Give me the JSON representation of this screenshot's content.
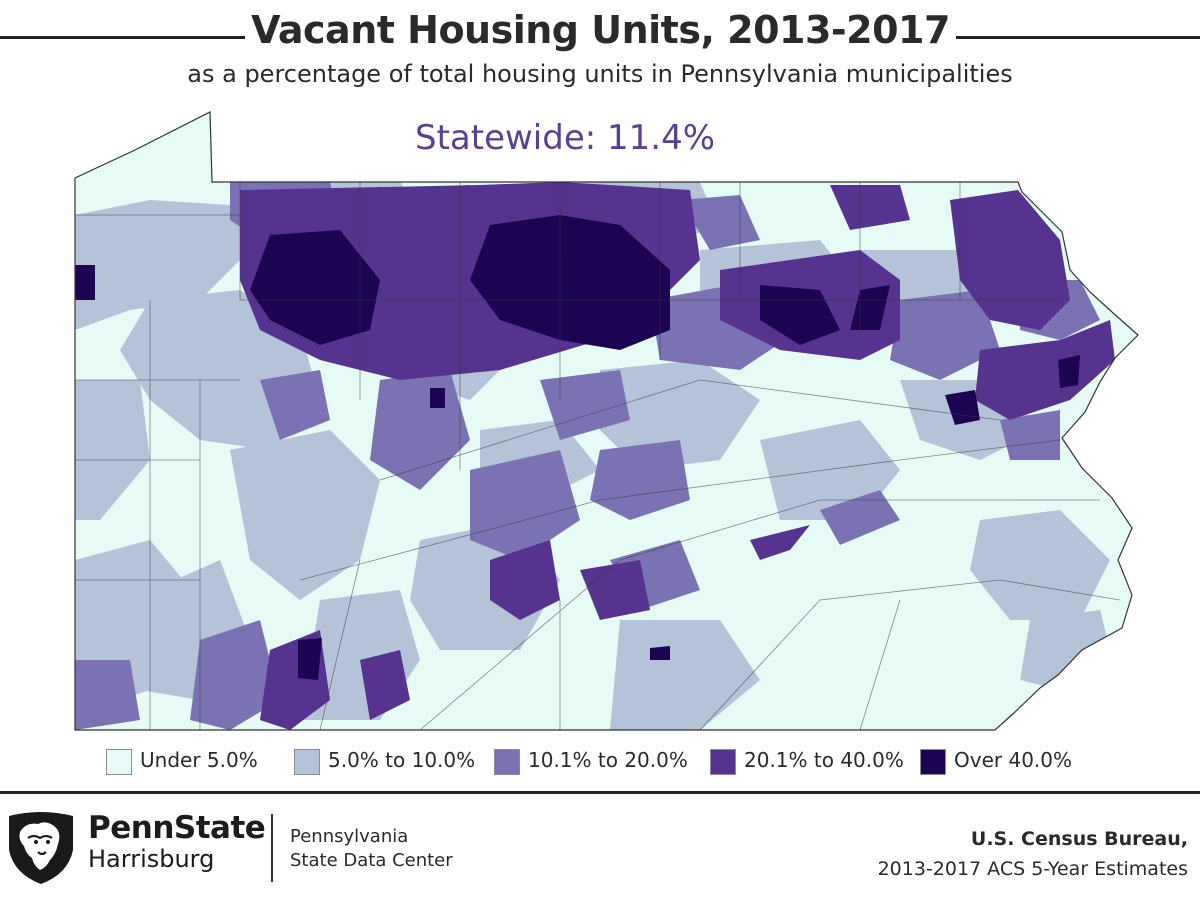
{
  "header": {
    "title": "Vacant Housing Units, 2013-2017",
    "subtitle": "as a percentage of total housing units in Pennsylvania municipalities",
    "statewide": "Statewide: 11.4%"
  },
  "legend": {
    "items": [
      {
        "label": "Under 5.0%",
        "color": "#e6fbf6"
      },
      {
        "label": "5.0% to 10.0%",
        "color": "#b4c3d8"
      },
      {
        "label": "10.1% to 20.0%",
        "color": "#7b72b4"
      },
      {
        "label": "20.1% to 40.0%",
        "color": "#55338f"
      },
      {
        "label": "Over 40.0%",
        "color": "#1c0452"
      }
    ]
  },
  "colors": {
    "boundary": "#3a3a3a",
    "statewide_text": "#5a3f96",
    "text": "#2a2a2a"
  },
  "footer": {
    "brand_name": "PennState",
    "brand_campus": "Harrisburg",
    "center_line1": "Pennsylvania",
    "center_line2": "State Data Center",
    "source_line1": "U.S. Census Bureau,",
    "source_line2": "2013-2017 ACS 5-Year Estimates",
    "logo_icon": "nittany-lion-shield-icon"
  }
}
